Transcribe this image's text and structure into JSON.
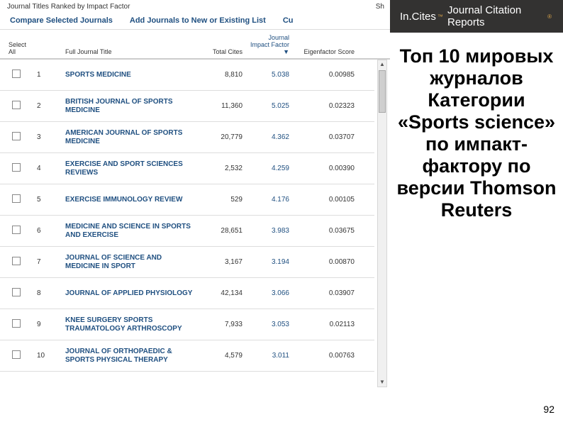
{
  "left": {
    "title_row": {
      "left": "Journal Titles Ranked by Impact Factor",
      "right": "Sh"
    },
    "commands": {
      "compare": "Compare Selected Journals",
      "addlist": "Add Journals to New or Existing List",
      "customise": "Cu"
    },
    "headers": {
      "select": "Select All",
      "rank": "",
      "title": "Full Journal Title",
      "cites": "Total Cites",
      "jif": "Journal Impact Factor ▼",
      "eigen": "Eigenfactor Score"
    },
    "rows": [
      {
        "rank": "1",
        "title": "SPORTS MEDICINE",
        "cites": "8,810",
        "jif": "5.038",
        "eigen": "0.00985"
      },
      {
        "rank": "2",
        "title": "BRITISH JOURNAL OF SPORTS MEDICINE",
        "cites": "11,360",
        "jif": "5.025",
        "eigen": "0.02323"
      },
      {
        "rank": "3",
        "title": "AMERICAN JOURNAL OF SPORTS MEDICINE",
        "cites": "20,779",
        "jif": "4.362",
        "eigen": "0.03707"
      },
      {
        "rank": "4",
        "title": "EXERCISE AND SPORT SCIENCES REVIEWS",
        "cites": "2,532",
        "jif": "4.259",
        "eigen": "0.00390"
      },
      {
        "rank": "5",
        "title": "EXERCISE IMMUNOLOGY REVIEW",
        "cites": "529",
        "jif": "4.176",
        "eigen": "0.00105"
      },
      {
        "rank": "6",
        "title": "MEDICINE AND SCIENCE IN SPORTS AND EXERCISE",
        "cites": "28,651",
        "jif": "3.983",
        "eigen": "0.03675"
      },
      {
        "rank": "7",
        "title": "JOURNAL OF SCIENCE AND MEDICINE IN SPORT",
        "cites": "3,167",
        "jif": "3.194",
        "eigen": "0.00870"
      },
      {
        "rank": "8",
        "title": "JOURNAL OF APPLIED PHYSIOLOGY",
        "cites": "42,134",
        "jif": "3.066",
        "eigen": "0.03907"
      },
      {
        "rank": "9",
        "title": "KNEE SURGERY SPORTS TRAUMATOLOGY ARTHROSCOPY",
        "cites": "7,933",
        "jif": "3.053",
        "eigen": "0.02113"
      },
      {
        "rank": "10",
        "title": "JOURNAL OF ORTHOPAEDIC & SPORTS PHYSICAL THERAPY",
        "cites": "4,579",
        "jif": "3.011",
        "eigen": "0.00763"
      }
    ]
  },
  "brand": {
    "incites": "In.Cites",
    "tm": "™",
    "jcr": "Journal Citation Reports",
    "reg": "®"
  },
  "headline": "Топ 10 мировых журналов Категории «Sports science» по импакт-фактору по версии Thomson Reuters",
  "page_number": "92"
}
